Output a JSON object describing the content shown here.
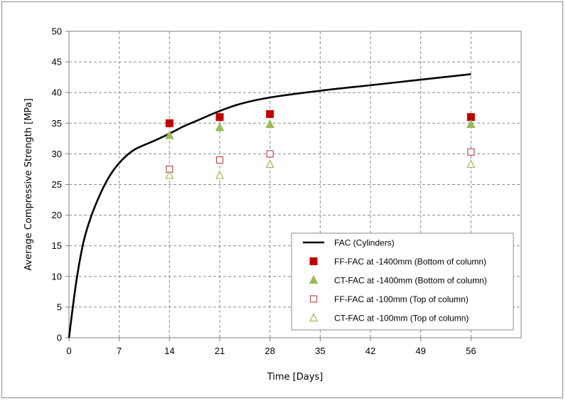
{
  "chart_data": {
    "type": "scatter",
    "title": "",
    "xlabel": "Time [Days]",
    "ylabel": "Average Compressive Strength [MPa]",
    "xlim": [
      0,
      63
    ],
    "ylim": [
      0,
      50
    ],
    "xticks": [
      0,
      7,
      14,
      21,
      28,
      35,
      42,
      49,
      56
    ],
    "yticks": [
      0,
      5,
      10,
      15,
      20,
      25,
      30,
      35,
      40,
      45,
      50
    ],
    "grid": true,
    "legend_position": "bottom-right",
    "series": [
      {
        "name": "FAC (Cylinders)",
        "kind": "line",
        "color": "#000000",
        "x": [
          0,
          1,
          2,
          3,
          4,
          5,
          6,
          7,
          8,
          9,
          10,
          12,
          14,
          16,
          18,
          21,
          24,
          28,
          35,
          42,
          49,
          56
        ],
        "y": [
          0,
          9,
          15.5,
          19.5,
          22.5,
          25,
          27,
          28.5,
          29.7,
          30.6,
          31.2,
          32.2,
          33.3,
          34.5,
          35.5,
          37,
          38.2,
          39.2,
          40.3,
          41.2,
          42.1,
          43
        ]
      },
      {
        "name": "FF-FAC at -1400mm (Bottom of column)",
        "kind": "marker",
        "marker": "square-filled",
        "color": "#c00000",
        "x": [
          14,
          21,
          28,
          56
        ],
        "y": [
          35,
          36,
          36.5,
          36
        ]
      },
      {
        "name": "CT-FAC at -1400mm (Bottom of column)",
        "kind": "marker",
        "marker": "triangle-filled",
        "color": "#9bbb59",
        "x": [
          14,
          21,
          28,
          56
        ],
        "y": [
          33,
          34.3,
          34.8,
          34.8
        ]
      },
      {
        "name": "FF-FAC at -100mm (Top of column)",
        "kind": "marker",
        "marker": "square-open",
        "color": "#c0504d",
        "x": [
          14,
          21,
          28,
          56
        ],
        "y": [
          27.5,
          29,
          30,
          30.3
        ]
      },
      {
        "name": "CT-FAC at -100mm (Top of column)",
        "kind": "marker",
        "marker": "triangle-open",
        "color": "#9bbb59",
        "x": [
          14,
          21,
          28,
          56
        ],
        "y": [
          26.5,
          26.5,
          28.3,
          28.3
        ]
      }
    ]
  }
}
